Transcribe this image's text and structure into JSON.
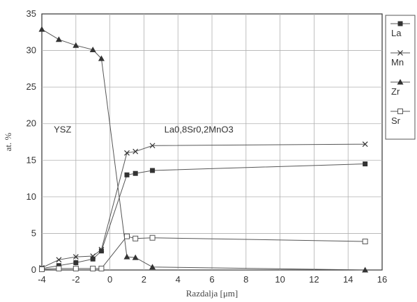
{
  "chart_data": {
    "type": "line",
    "xlabel": "Razdalja [μm]",
    "ylabel": "at. %",
    "xlim": [
      -4,
      16
    ],
    "ylim": [
      0,
      35
    ],
    "xticks": [
      -4,
      -2,
      0,
      2,
      4,
      6,
      8,
      10,
      12,
      14,
      16
    ],
    "yticks": [
      0,
      5,
      10,
      15,
      20,
      25,
      30,
      35
    ],
    "grid": true,
    "legend_position": "right",
    "annotations": [
      {
        "text": "YSZ",
        "x": -3.3,
        "y": 18.8
      },
      {
        "text": "La0,8Sr0,2MnO3",
        "x": 3.2,
        "y": 18.8
      }
    ],
    "series": [
      {
        "name": "La",
        "marker": "square",
        "x": [
          -4,
          -3,
          -2,
          -1,
          -0.5,
          1,
          1.5,
          2.5,
          15
        ],
        "y": [
          0.2,
          0.6,
          1.0,
          1.5,
          2.6,
          13.0,
          13.2,
          13.6,
          14.5
        ]
      },
      {
        "name": "Mn",
        "marker": "x",
        "x": [
          -4,
          -3,
          -2,
          -1,
          -0.5,
          1,
          1.5,
          2.5,
          15
        ],
        "y": [
          0.3,
          1.4,
          1.8,
          1.9,
          2.8,
          16.0,
          16.2,
          17.0,
          17.2
        ]
      },
      {
        "name": "Zr",
        "marker": "triangle",
        "x": [
          -4,
          -3,
          -2,
          -1,
          -0.5,
          1,
          1.5,
          2.5,
          15
        ],
        "y": [
          32.9,
          31.5,
          30.7,
          30.1,
          28.9,
          1.8,
          1.7,
          0.4,
          0.0
        ]
      },
      {
        "name": "Sr",
        "marker": "open-square",
        "x": [
          -4,
          -3,
          -2,
          -1,
          -0.5,
          1,
          1.5,
          2.5,
          15
        ],
        "y": [
          0.1,
          0.2,
          0.2,
          0.2,
          0.2,
          4.6,
          4.3,
          4.4,
          3.9
        ]
      }
    ]
  }
}
